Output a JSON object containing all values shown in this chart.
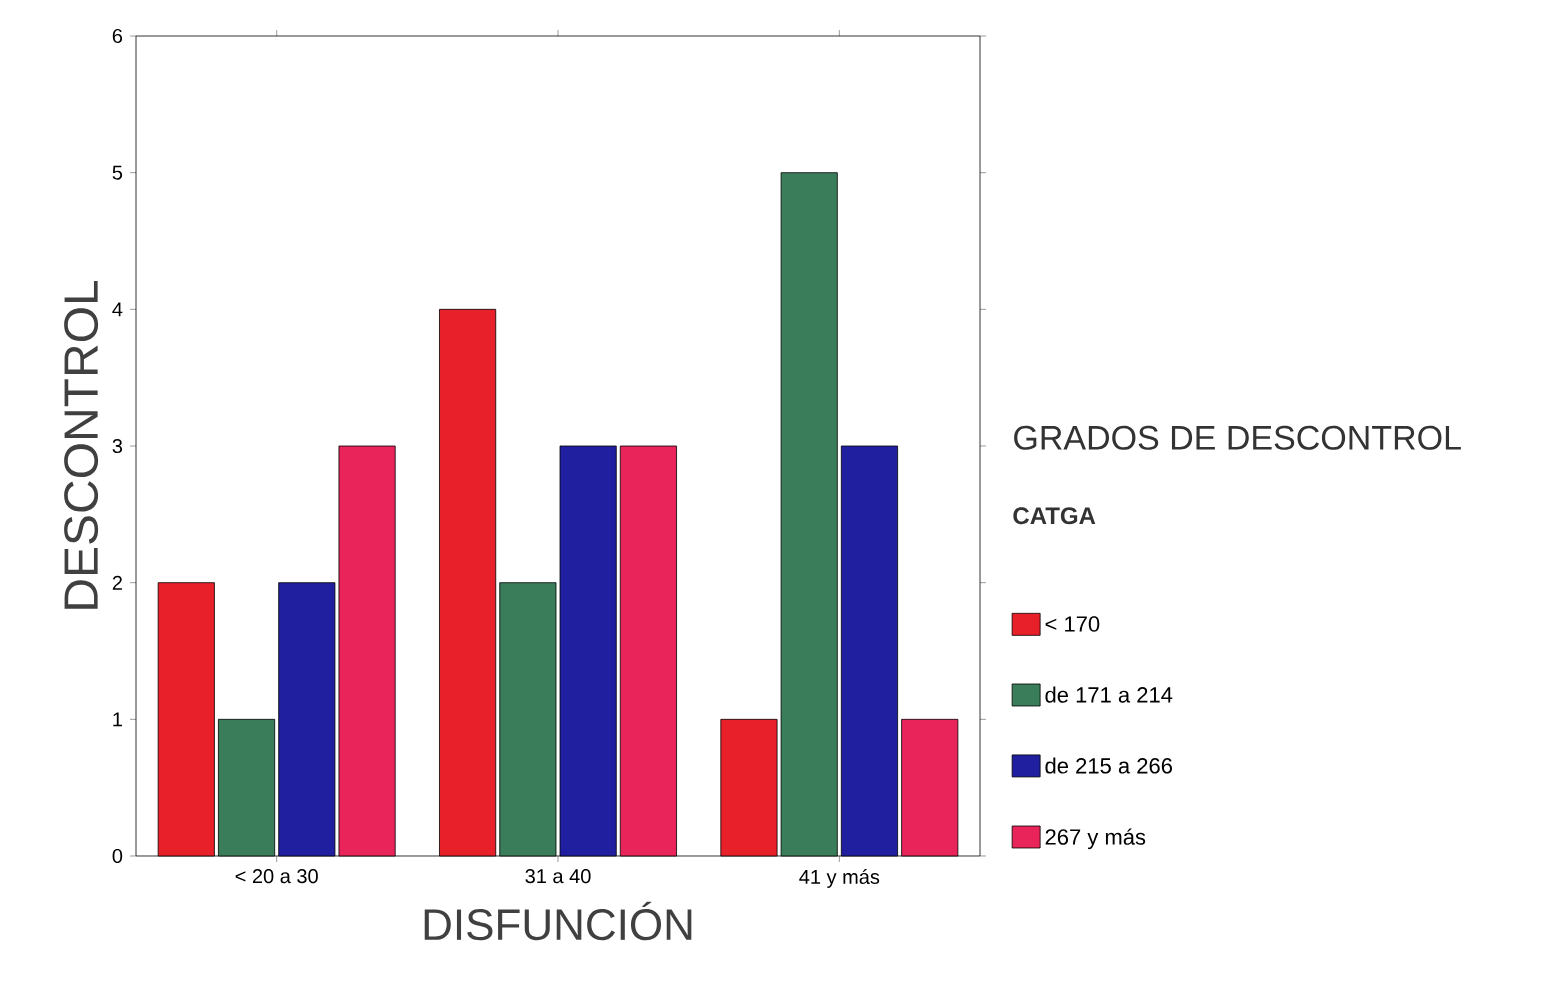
{
  "chart_data": {
    "type": "bar",
    "xlabel": "DISFUNCIÓN",
    "ylabel": "DESCONTROL",
    "legend_title": "GRADOS DE DESCONTROL",
    "annotations": [
      "CATGA"
    ],
    "categories": [
      "< 20 a 30",
      "31 a 40",
      "41 y más"
    ],
    "series": [
      {
        "name": "< 170",
        "color": "#e8202a",
        "values": [
          2,
          4,
          1
        ]
      },
      {
        "name": "de 171 a 214",
        "color": "#3a7d5a",
        "values": [
          1,
          2,
          5
        ]
      },
      {
        "name": "de 215 a 266",
        "color": "#1f1f9f",
        "values": [
          2,
          3,
          3
        ]
      },
      {
        "name": "267 y más",
        "color": "#e8245a",
        "values": [
          3,
          3,
          1
        ]
      }
    ],
    "ylim": [
      0,
      6
    ],
    "yticks": [
      0,
      1,
      2,
      3,
      4,
      5,
      6
    ],
    "grid": false,
    "legend": "right"
  }
}
